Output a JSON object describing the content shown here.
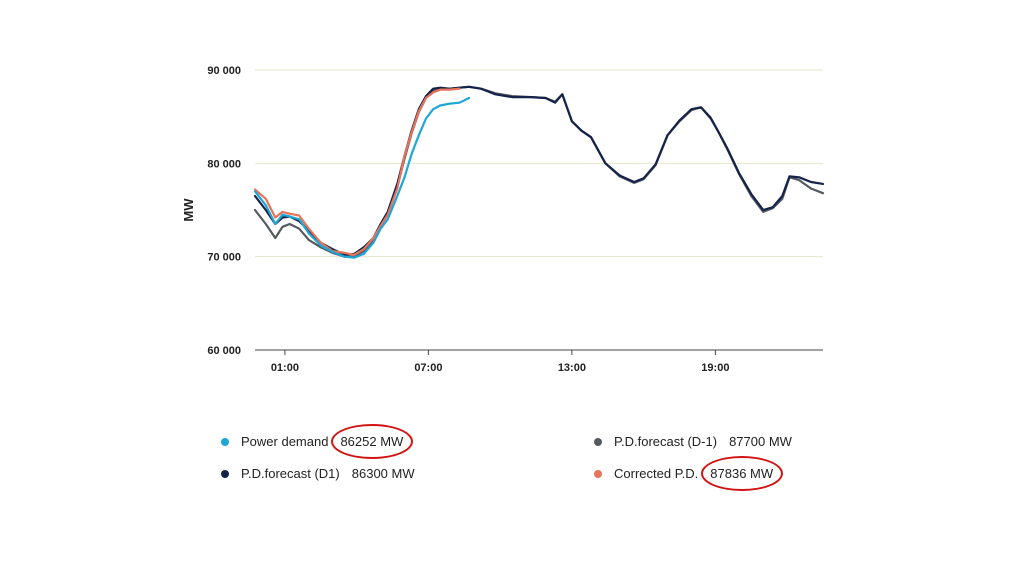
{
  "chart_data": {
    "type": "line",
    "title": "",
    "ylabel": "MW",
    "xlabel": "",
    "ylim": [
      60000,
      90000
    ],
    "xlim": [
      -0.25,
      23.5
    ],
    "y_ticks": [
      {
        "value": 90000,
        "label": "90 000"
      },
      {
        "value": 80000,
        "label": "80 000"
      },
      {
        "value": 70000,
        "label": "70 000"
      },
      {
        "value": 60000,
        "label": "60 000"
      }
    ],
    "x_ticks": [
      {
        "value": 1,
        "label": "01:00"
      },
      {
        "value": 7,
        "label": "07:00"
      },
      {
        "value": 13,
        "label": "13:00"
      },
      {
        "value": 19,
        "label": "19:00"
      }
    ],
    "grid": "horizontal",
    "series": [
      {
        "name": "P.D.forecast (D-1)",
        "color": "#555a60",
        "x": [
          -0.25,
          0.2,
          0.6,
          0.9,
          1.2,
          1.6,
          2.0,
          2.5,
          3.0,
          3.5,
          3.9,
          4.3,
          4.7,
          5.0,
          5.3,
          5.7,
          6.0,
          6.3,
          6.6,
          6.9,
          7.2,
          7.5,
          7.9,
          8.3,
          8.7,
          9.2,
          9.8,
          10.5,
          11.3,
          11.9,
          12.3,
          12.6,
          13.0,
          13.4,
          13.8,
          14.4,
          15.0,
          15.6,
          16.0,
          16.5,
          17.0,
          17.5,
          18.0,
          18.4,
          18.8,
          19.1,
          19.5,
          20.0,
          20.5,
          21.0,
          21.4,
          21.8,
          22.1,
          22.5,
          23.0,
          23.5
        ],
        "y": [
          75000,
          73500,
          72000,
          73200,
          73500,
          73000,
          71800,
          71000,
          70400,
          70000,
          70000,
          70600,
          71800,
          73200,
          74600,
          77500,
          80500,
          83200,
          85500,
          87000,
          87800,
          88000,
          88000,
          88100,
          88200,
          88000,
          87500,
          87200,
          87100,
          87000,
          86600,
          87400,
          84500,
          83500,
          82800,
          80000,
          78600,
          77900,
          78300,
          79800,
          83000,
          84500,
          85700,
          86000,
          84800,
          83500,
          81500,
          78800,
          76500,
          74800,
          75200,
          76200,
          78500,
          78200,
          77300,
          76800
        ]
      },
      {
        "name": "P.D.forecast (D1)",
        "color": "#15234a",
        "x": [
          -0.25,
          0.2,
          0.6,
          0.9,
          1.2,
          1.6,
          2.0,
          2.5,
          3.0,
          3.5,
          3.9,
          4.3,
          4.7,
          5.0,
          5.3,
          5.7,
          6.0,
          6.3,
          6.6,
          6.9,
          7.2,
          7.5,
          7.9,
          8.3,
          8.7,
          9.2,
          9.8,
          10.5,
          11.3,
          11.9,
          12.3,
          12.6,
          13.0,
          13.4,
          13.8,
          14.4,
          15.0,
          15.6,
          16.0,
          16.5,
          17.0,
          17.5,
          18.0,
          18.4,
          18.8,
          19.1,
          19.5,
          20.0,
          20.5,
          21.0,
          21.4,
          21.8,
          22.1,
          22.5,
          23.0,
          23.5
        ],
        "y": [
          76500,
          75000,
          73500,
          74200,
          74300,
          73800,
          72800,
          71500,
          70800,
          70200,
          70300,
          71000,
          72000,
          73500,
          74800,
          77800,
          80800,
          83500,
          85800,
          87200,
          88000,
          88100,
          88000,
          88100,
          88200,
          88000,
          87400,
          87100,
          87100,
          87000,
          86500,
          87400,
          84500,
          83500,
          82800,
          80000,
          78700,
          78000,
          78400,
          79900,
          83000,
          84600,
          85800,
          86000,
          84900,
          83500,
          81600,
          78900,
          76700,
          75000,
          75300,
          76500,
          78600,
          78500,
          78000,
          77800
        ]
      },
      {
        "name": "Corrected P.D.",
        "color": "#e8735a",
        "x": [
          -0.25,
          0.2,
          0.6,
          0.9,
          1.2,
          1.6,
          2.0,
          2.5,
          3.0,
          3.5,
          3.9,
          4.3,
          4.7,
          5.0,
          5.3,
          5.7,
          6.0,
          6.3,
          6.6,
          6.9,
          7.2,
          7.5,
          7.9,
          8.3
        ],
        "y": [
          77200,
          76200,
          74200,
          74800,
          74600,
          74400,
          73000,
          71500,
          70600,
          70400,
          70200,
          70800,
          72000,
          73300,
          74500,
          77300,
          80800,
          83300,
          85600,
          87000,
          87600,
          87900,
          87900,
          88000
        ]
      },
      {
        "name": "Power demand",
        "color": "#1ea7d6",
        "x": [
          -0.25,
          0.2,
          0.6,
          0.9,
          1.2,
          1.6,
          2.0,
          2.5,
          3.0,
          3.5,
          3.9,
          4.3,
          4.7,
          5.0,
          5.3,
          5.7,
          6.0,
          6.3,
          6.6,
          6.9,
          7.2,
          7.5,
          7.9,
          8.3,
          8.7
        ],
        "y": [
          77000,
          75500,
          73500,
          74500,
          74300,
          74000,
          72500,
          71200,
          70500,
          70000,
          69900,
          70300,
          71500,
          73000,
          74000,
          76500,
          78500,
          81000,
          83000,
          84800,
          85800,
          86200,
          86400,
          86500,
          87000
        ]
      }
    ],
    "legend": [
      {
        "name": "Power demand",
        "value": "86252 MW",
        "color": "#1ea7d6",
        "highlighted": true
      },
      {
        "name": "P.D.forecast (D1)",
        "value": "86300 MW",
        "color": "#15234a",
        "highlighted": false
      },
      {
        "name": "P.D.forecast (D-1)",
        "value": "87700 MW",
        "color": "#555a60",
        "highlighted": false
      },
      {
        "name": "Corrected P.D.",
        "value": "87836 MW",
        "color": "#e8735a",
        "highlighted": true
      }
    ]
  }
}
